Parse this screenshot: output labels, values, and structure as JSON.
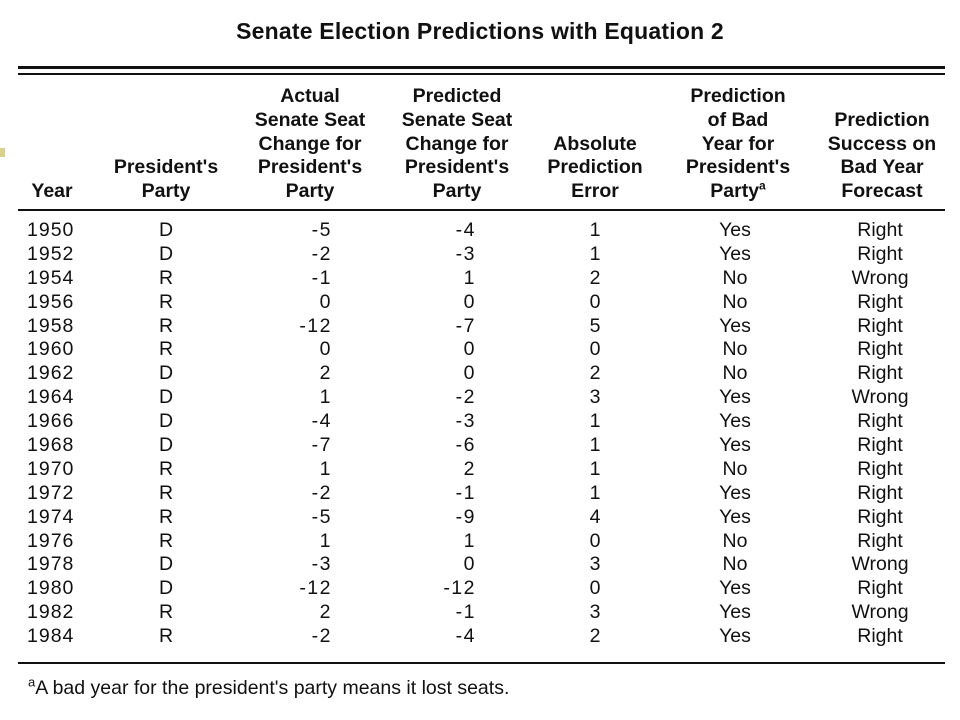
{
  "title": "Senate Election Predictions with Equation 2",
  "headers": {
    "year": [
      "Year"
    ],
    "party": [
      "President's",
      "Party"
    ],
    "actual": [
      "Actual",
      "Senate Seat",
      "Change for",
      "President's",
      "Party"
    ],
    "predicted": [
      "Predicted",
      "Senate Seat",
      "Change for",
      "President's",
      "Party"
    ],
    "error": [
      "Absolute",
      "Prediction",
      "Error"
    ],
    "bad_year": [
      "Prediction",
      "of Bad",
      "Year for",
      "President's",
      "Party"
    ],
    "bad_year_sup": "a",
    "success": [
      "Prediction",
      "Success on",
      "Bad Year",
      "Forecast"
    ]
  },
  "rows": [
    {
      "year": "1950",
      "party": "D",
      "actual": "-5",
      "predicted": "-4",
      "error": "1",
      "bad_year": "Yes",
      "success": "Right"
    },
    {
      "year": "1952",
      "party": "D",
      "actual": "-2",
      "predicted": "-3",
      "error": "1",
      "bad_year": "Yes",
      "success": "Right"
    },
    {
      "year": "1954",
      "party": "R",
      "actual": "-1",
      "predicted": "1",
      "error": "2",
      "bad_year": "No",
      "success": "Wrong"
    },
    {
      "year": "1956",
      "party": "R",
      "actual": "0",
      "predicted": "0",
      "error": "0",
      "bad_year": "No",
      "success": "Right"
    },
    {
      "year": "1958",
      "party": "R",
      "actual": "-12",
      "predicted": "-7",
      "error": "5",
      "bad_year": "Yes",
      "success": "Right"
    },
    {
      "year": "1960",
      "party": "R",
      "actual": "0",
      "predicted": "0",
      "error": "0",
      "bad_year": "No",
      "success": "Right"
    },
    {
      "year": "1962",
      "party": "D",
      "actual": "2",
      "predicted": "0",
      "error": "2",
      "bad_year": "No",
      "success": "Right"
    },
    {
      "year": "1964",
      "party": "D",
      "actual": "1",
      "predicted": "-2",
      "error": "3",
      "bad_year": "Yes",
      "success": "Wrong"
    },
    {
      "year": "1966",
      "party": "D",
      "actual": "-4",
      "predicted": "-3",
      "error": "1",
      "bad_year": "Yes",
      "success": "Right"
    },
    {
      "year": "1968",
      "party": "D",
      "actual": "-7",
      "predicted": "-6",
      "error": "1",
      "bad_year": "Yes",
      "success": "Right"
    },
    {
      "year": "1970",
      "party": "R",
      "actual": "1",
      "predicted": "2",
      "error": "1",
      "bad_year": "No",
      "success": "Right"
    },
    {
      "year": "1972",
      "party": "R",
      "actual": "-2",
      "predicted": "-1",
      "error": "1",
      "bad_year": "Yes",
      "success": "Right"
    },
    {
      "year": "1974",
      "party": "R",
      "actual": "-5",
      "predicted": "-9",
      "error": "4",
      "bad_year": "Yes",
      "success": "Right"
    },
    {
      "year": "1976",
      "party": "R",
      "actual": "1",
      "predicted": "1",
      "error": "0",
      "bad_year": "No",
      "success": "Right"
    },
    {
      "year": "1978",
      "party": "D",
      "actual": "-3",
      "predicted": "0",
      "error": "3",
      "bad_year": "No",
      "success": "Wrong"
    },
    {
      "year": "1980",
      "party": "D",
      "actual": "-12",
      "predicted": "-12",
      "error": "0",
      "bad_year": "Yes",
      "success": "Right"
    },
    {
      "year": "1982",
      "party": "R",
      "actual": "2",
      "predicted": "-1",
      "error": "3",
      "bad_year": "Yes",
      "success": "Wrong"
    },
    {
      "year": "1984",
      "party": "R",
      "actual": "-2",
      "predicted": "-4",
      "error": "2",
      "bad_year": "Yes",
      "success": "Right"
    }
  ],
  "footnote": {
    "marker": "a",
    "text": "A bad year for the president's party means it lost seats."
  }
}
